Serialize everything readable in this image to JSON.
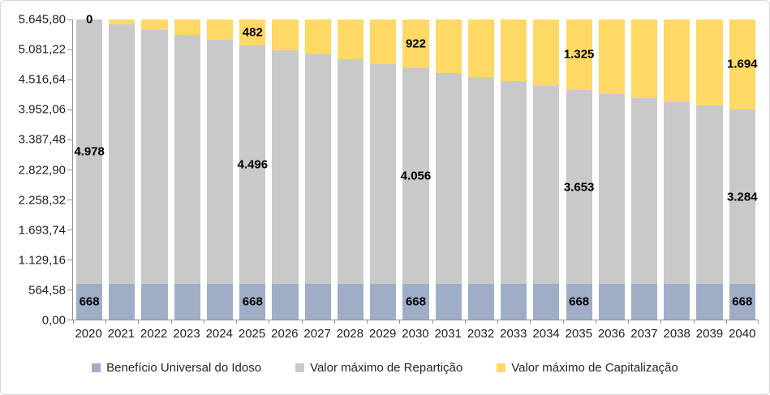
{
  "chart_data": {
    "type": "bar",
    "stacked": true,
    "title": "",
    "xlabel": "",
    "ylabel": "",
    "grid": false,
    "legend_position": "bottom",
    "ylim": [
      0,
      5645.8
    ],
    "y_ticks": [
      "0,00",
      "564,58",
      "1.129,16",
      "1.693,74",
      "2.258,32",
      "2.822,90",
      "3.387,48",
      "3.952,06",
      "4.516,64",
      "5.081,22",
      "5.645,80"
    ],
    "categories": [
      "2020",
      "2021",
      "2022",
      "2023",
      "2024",
      "2025",
      "2026",
      "2027",
      "2028",
      "2029",
      "2030",
      "2031",
      "2032",
      "2033",
      "2034",
      "2035",
      "2036",
      "2037",
      "2038",
      "2039",
      "2040"
    ],
    "series": [
      {
        "name": "Benefício Universal do Idoso",
        "color": "#9FAEC6",
        "values": [
          668,
          668,
          668,
          668,
          668,
          668,
          668,
          668,
          668,
          668,
          668,
          668,
          668,
          668,
          668,
          668,
          668,
          668,
          668,
          668,
          668
        ]
      },
      {
        "name": "Valor máximo de Repartição",
        "color": "#C9C9C9",
        "values": [
          4978,
          4880,
          4782,
          4685,
          4590,
          4496,
          4406,
          4317,
          4229,
          4142,
          4056,
          3974,
          3892,
          3812,
          3732,
          3653,
          3577,
          3502,
          3428,
          3356,
          3284
        ]
      },
      {
        "name": "Valor máximo de Capitalização",
        "color": "#FFD966",
        "values": [
          0,
          98,
          196,
          293,
          388,
          482,
          572,
          661,
          749,
          836,
          922,
          1004,
          1086,
          1166,
          1246,
          1325,
          1401,
          1476,
          1550,
          1622,
          1694
        ]
      }
    ],
    "data_labels": [
      {
        "category": "2020",
        "values": [
          "668",
          "4.978",
          "0"
        ]
      },
      {
        "category": "2025",
        "values": [
          "668",
          "4.496",
          "482"
        ]
      },
      {
        "category": "2030",
        "values": [
          "668",
          "4.056",
          "922"
        ]
      },
      {
        "category": "2035",
        "values": [
          "668",
          "3.653",
          "1.325"
        ]
      },
      {
        "category": "2040",
        "values": [
          "668",
          "3.284",
          "1.694"
        ]
      }
    ],
    "colors": {
      "axis_line": "#919191",
      "axis_text": "#1F1F1F",
      "data_label_text": "#000000",
      "border": "#D6D6D6",
      "background": "#FFFFFF"
    }
  }
}
